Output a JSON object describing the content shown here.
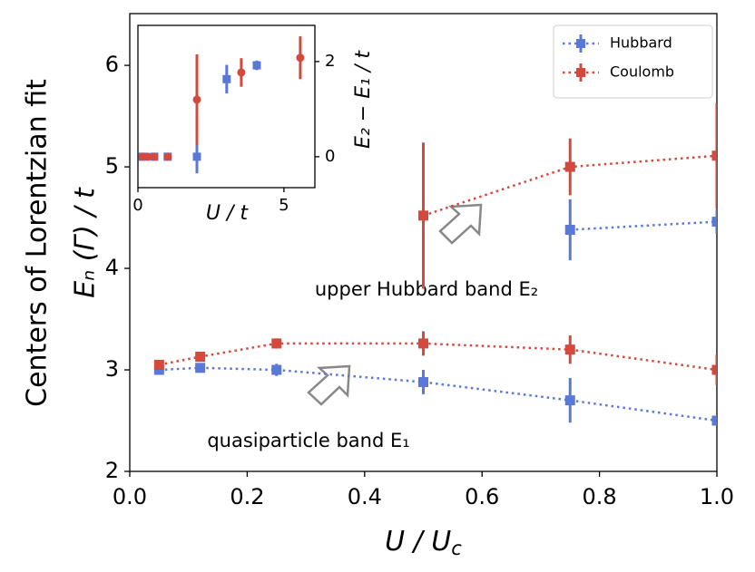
{
  "chart_data": {
    "type": "line",
    "x": [
      0.05,
      0.12,
      0.25,
      0.5,
      0.75,
      1.0
    ],
    "xlim": [
      0,
      1
    ],
    "ylim": [
      2,
      6.51
    ],
    "xticks": [
      {
        "value": 0,
        "label": "0.0"
      },
      {
        "value": 0.2,
        "label": "0.2"
      },
      {
        "value": 0.4,
        "label": "0.4"
      },
      {
        "value": 0.6,
        "label": "0.6"
      },
      {
        "value": 0.8,
        "label": "0.8"
      },
      {
        "value": 1.0,
        "label": "1.0"
      }
    ],
    "yticks": [
      2,
      3,
      4,
      5,
      6
    ],
    "xlabel": "U / U",
    "xlabel_sub": "c",
    "ylabel": [
      "Centers of Lorentzian fit",
      "Eₙ (Γ) / t"
    ],
    "line_style": "dotted",
    "legend": "upper right",
    "annotations": [
      "upper Hubbard band E₂",
      "quasiparticle band E₁"
    ],
    "series": [
      {
        "name": "Hubbard",
        "color": "#5a78d8",
        "marker": "square",
        "values": [
          3.0,
          3.02,
          3.0,
          2.88,
          2.7,
          2.5
        ],
        "errors": [
          0.02,
          0.03,
          0.06,
          0.12,
          0.22,
          0.03
        ],
        "upper_values": [
          null,
          null,
          null,
          null,
          4.38,
          4.46
        ],
        "upper_errors": [
          null,
          null,
          null,
          null,
          0.3,
          0.12
        ]
      },
      {
        "name": "Coulomb",
        "color": "#d5483c",
        "marker": "square",
        "values": [
          3.05,
          3.13,
          3.26,
          3.26,
          3.2,
          3.0
        ],
        "errors": [
          0.02,
          0.03,
          0.05,
          0.12,
          0.14,
          0.15
        ],
        "upper_values": [
          null,
          null,
          null,
          4.52,
          5.0,
          5.11
        ],
        "upper_errors": [
          null,
          null,
          null,
          0.72,
          0.28,
          0.52
        ]
      }
    ],
    "inset": {
      "type": "scatter",
      "xlim": [
        0,
        6.06
      ],
      "ylim": [
        -0.65,
        2.76
      ],
      "xticks": [
        0,
        5
      ],
      "yticks": [
        0,
        2
      ],
      "xlabel": "U / t",
      "ylabel": "E₂ − E₁ / t",
      "series": [
        {
          "color": "#5a78d8",
          "marker": "square",
          "x": [
            0.16,
            0.56,
            1.02,
            2.02,
            3.04,
            4.07
          ],
          "values": [
            0,
            0,
            0,
            0,
            1.63,
            1.92
          ],
          "errors": [
            0.02,
            0.02,
            0.02,
            0.35,
            0.3,
            0.1
          ]
        },
        {
          "color": "#d5483c",
          "marker": "circle",
          "x": [
            0.16,
            0.34,
            0.56,
            1.02,
            2.02,
            3.54,
            5.56
          ],
          "values": [
            0,
            0,
            0,
            0,
            1.2,
            1.77,
            2.08
          ],
          "errors": [
            0.02,
            0.02,
            0.02,
            0.02,
            0.95,
            0.3,
            0.45
          ]
        }
      ]
    }
  }
}
